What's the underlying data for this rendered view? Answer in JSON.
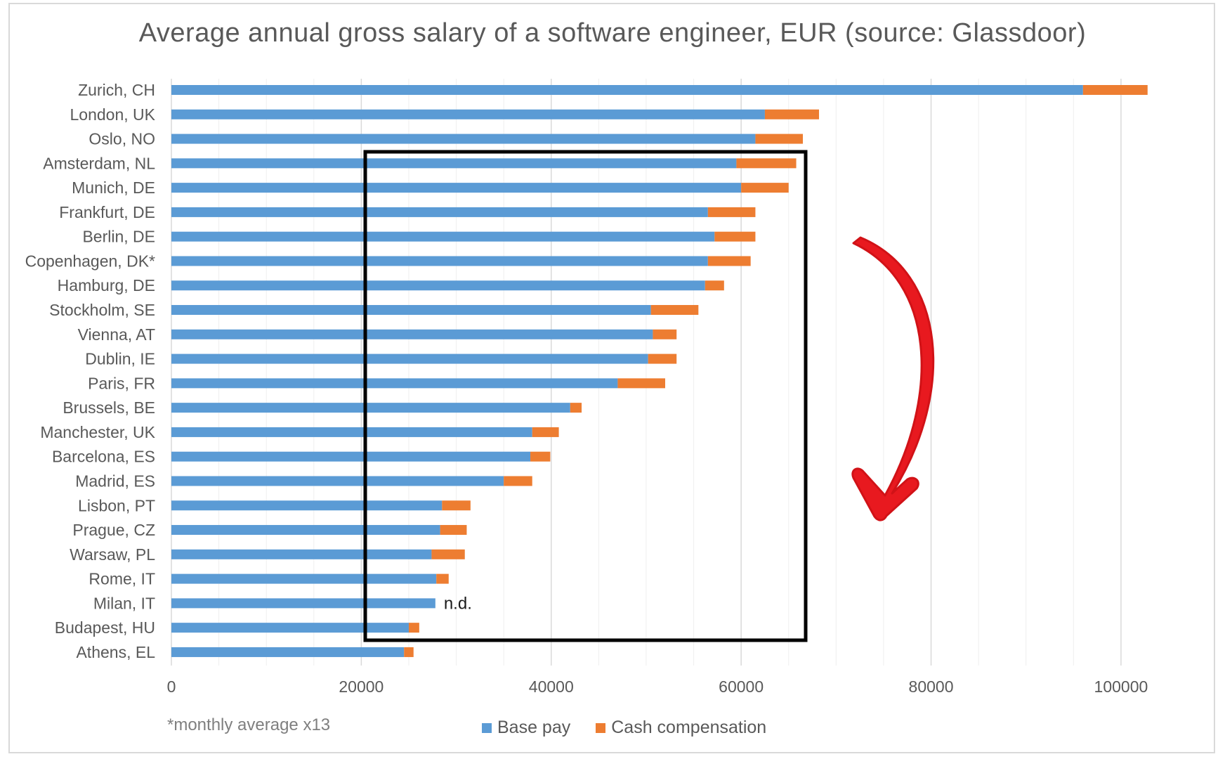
{
  "chart_data": {
    "type": "bar",
    "orientation": "horizontal",
    "stacked": true,
    "title": "Average annual gross salary of a software engineer, EUR (source: Glassdoor)",
    "categories": [
      "Zurich, CH",
      "London, UK",
      "Oslo, NO",
      "Amsterdam, NL",
      "Munich, DE",
      "Frankfurt, DE",
      "Berlin, DE",
      "Copenhagen, DK*",
      "Hamburg, DE",
      "Stockholm, SE",
      "Vienna, AT",
      "Dublin, IE",
      "Paris, FR",
      "Brussels, BE",
      "Manchester, UK",
      "Barcelona, ES",
      "Madrid, ES",
      "Lisbon, PT",
      "Prague, CZ",
      "Warsaw, PL",
      "Rome, IT",
      "Milan, IT",
      "Budapest, HU",
      "Athens, EL"
    ],
    "series": [
      {
        "name": "Base pay",
        "color": "#5b9bd5",
        "values": [
          96000,
          62500,
          61500,
          59500,
          60000,
          56500,
          57200,
          56500,
          56200,
          50500,
          50700,
          50200,
          47000,
          42000,
          38000,
          37800,
          35000,
          28500,
          28300,
          27400,
          27900,
          27800,
          25000,
          24500
        ]
      },
      {
        "name": "Cash compensation",
        "color": "#ed7d31",
        "values": [
          6800,
          5700,
          5000,
          6300,
          5000,
          5000,
          4300,
          4500,
          2000,
          5000,
          2500,
          3000,
          5000,
          1200,
          2800,
          2100,
          3000,
          3000,
          2800,
          3500,
          1300,
          null,
          1100,
          1000
        ]
      }
    ],
    "xlim": [
      0,
      104000
    ],
    "xticks": [
      "0",
      "20000",
      "40000",
      "60000",
      "80000",
      "100000"
    ],
    "grid": true,
    "legend_position": "bottom",
    "annotations": [
      {
        "category": "Milan, IT",
        "text": "n.d."
      }
    ],
    "footnote": "*monthly average x13"
  }
}
